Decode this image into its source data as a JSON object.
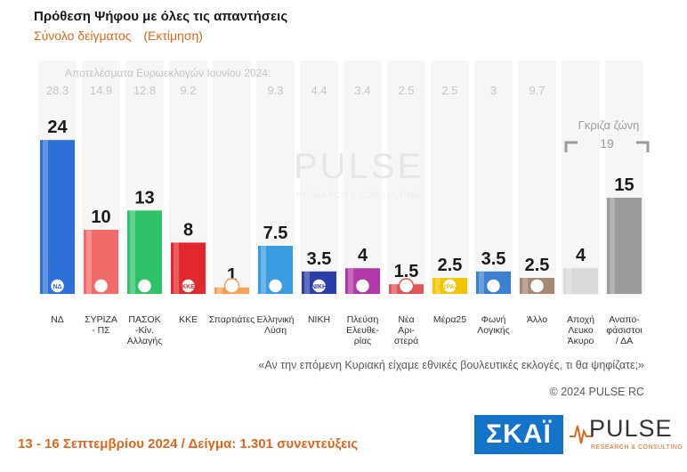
{
  "header": {
    "title": "Πρόθεση Ψήφου με όλες τις απαντήσεις",
    "subtitle_left": "Σύνολο δείγματος",
    "subtitle_right": "(Εκτίμηση)"
  },
  "chart_data": {
    "type": "bar",
    "title": "Πρόθεση Ψήφου με όλες τις απαντήσεις",
    "reference_label": "Αποτελέσματα Ευρωεκλογών Ιουνίου 2024:",
    "grey_zone_label": "Γκριζα ζώνη",
    "grey_zone_value": "19",
    "categories": [
      [
        "ΝΔ"
      ],
      [
        "ΣΥΡΙΖΑ",
        "- ΠΣ"
      ],
      [
        "ΠΑΣΟΚ",
        "-Κίν.",
        "Αλλαγής"
      ],
      [
        "ΚΚΕ"
      ],
      [
        "Σπαρτιάτες"
      ],
      [
        "Ελληνική",
        "Λύση"
      ],
      [
        "ΝΙΚΗ"
      ],
      [
        "Πλεύση",
        "Ελευθε-",
        "ρίας"
      ],
      [
        "Νέα",
        "Αρι-",
        "στερά"
      ],
      [
        "Μέρα25"
      ],
      [
        "Φωνή",
        "Λογικής"
      ],
      [
        "Άλλο"
      ],
      [
        "Αποχή",
        "Λευκο",
        "Άκυρο"
      ],
      [
        "Αναπο-",
        "φάσιστοι",
        "/ ΔΑ"
      ]
    ],
    "values": [
      24,
      10,
      13,
      8,
      1,
      7.5,
      3.5,
      4,
      1.5,
      2.5,
      3.5,
      2.5,
      4,
      15
    ],
    "value_labels": [
      "24",
      "10",
      "13",
      "8",
      "1",
      "7.5",
      "3.5",
      "4",
      "1.5",
      "2.5",
      "3.5",
      "2.5",
      "4",
      "15"
    ],
    "reference_values": [
      "28.3",
      "14.9",
      "12.8",
      "9.2",
      "",
      "9.3",
      "4.4",
      "3.4",
      "2.5",
      "2.5",
      "3",
      "9.7",
      "",
      ""
    ],
    "colors": [
      "#2f6fd8",
      "#f06a6a",
      "#2fc26b",
      "#e0282e",
      "#f7a155",
      "#3a9ce0",
      "#2b3ea8",
      "#b03aa8",
      "#e05555",
      "#f2c500",
      "#3a7fd0",
      "#a58876",
      "#d9d9d9",
      "#9a9a9a"
    ],
    "logo_text": [
      "ΝΔ",
      "",
      "",
      "ΚΚΕ",
      "",
      "",
      "ΝΙΚΗ",
      "",
      "",
      "ΜέΡΑ25",
      "",
      "",
      "",
      ""
    ],
    "ylim": [
      0,
      30
    ],
    "grid": false
  },
  "footer": {
    "question": "«Αν την επόμενη Κυριακή είχαμε εθνικές βουλευτικές εκλογές, τι θα ψηφίζατε;»",
    "copyright": "© 2024 PULSE RC",
    "date_sample": "13 - 16 Σεπτεμβρίου 2024  /  Δείγμα:  1.301 συνεντεύξεις"
  },
  "logos": {
    "skai": "ΣΚΑΪ",
    "pulse": "PULSE",
    "pulse_tagline": "RESEARCH & CONSULTING",
    "watermark": "PULSE",
    "watermark_tagline": "RESEARCH & CONSULTING"
  }
}
